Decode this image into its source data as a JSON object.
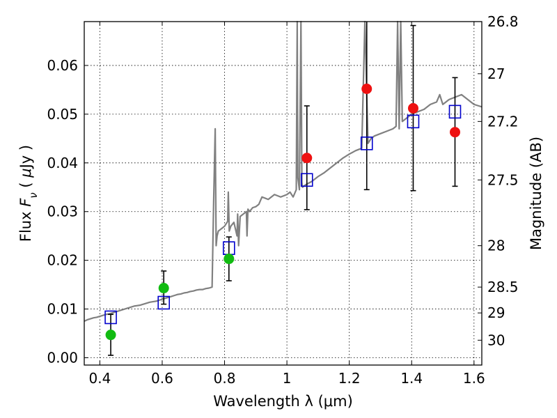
{
  "chart_data": {
    "type": "scatter",
    "xlabel": "Wavelength  λ (μm)",
    "ylabel": "Flux  F_ν  ( μJy )",
    "ylabel_right": "Magnitude (AB)",
    "xlim": [
      0.35,
      1.625
    ],
    "ylim": [
      -0.0015,
      0.069
    ],
    "x_ticks": [
      0.4,
      0.6,
      0.8,
      1.0,
      1.2,
      1.4,
      1.6
    ],
    "x_tick_labels": [
      "0.4",
      "0.6",
      "0.8",
      "1",
      "1.2",
      "1.4",
      "1.6"
    ],
    "y_ticks": [
      0.0,
      0.01,
      0.02,
      0.03,
      0.04,
      0.05,
      0.06
    ],
    "y_tick_labels": [
      "0.00",
      "0.01",
      "0.02",
      "0.03",
      "0.04",
      "0.05",
      "0.06"
    ],
    "right_ticks": [
      {
        "flux": 0.069,
        "label": "26.8"
      },
      {
        "flux": 0.0583,
        "label": "27"
      },
      {
        "flux": 0.0485,
        "label": "27.2"
      },
      {
        "flux": 0.0365,
        "label": "27.5"
      },
      {
        "flux": 0.023,
        "label": "28"
      },
      {
        "flux": 0.0145,
        "label": "28.5"
      },
      {
        "flux": 0.0092,
        "label": "29"
      },
      {
        "flux": 0.0036,
        "label": "30"
      }
    ],
    "grid": true,
    "colors": {
      "sed": "#808080",
      "model_box": "#0000cc",
      "detection": "#ee1111",
      "optical": "#11bb11",
      "errorbar": "#000000"
    },
    "sed_model": {
      "x": [
        0.35,
        0.36,
        0.37,
        0.38,
        0.39,
        0.4,
        0.41,
        0.42,
        0.43,
        0.44,
        0.45,
        0.46,
        0.47,
        0.48,
        0.49,
        0.5,
        0.51,
        0.52,
        0.53,
        0.54,
        0.55,
        0.56,
        0.57,
        0.58,
        0.59,
        0.6,
        0.61,
        0.62,
        0.63,
        0.64,
        0.65,
        0.66,
        0.67,
        0.68,
        0.69,
        0.7,
        0.71,
        0.72,
        0.73,
        0.74,
        0.75,
        0.76,
        0.765,
        0.77,
        0.773,
        0.776,
        0.78,
        0.79,
        0.8,
        0.81,
        0.812,
        0.815,
        0.82,
        0.83,
        0.84,
        0.842,
        0.845,
        0.85,
        0.86,
        0.87,
        0.872,
        0.875,
        0.88,
        0.89,
        0.9,
        0.91,
        0.92,
        0.94,
        0.96,
        0.98,
        1.0,
        1.01,
        1.02,
        1.03,
        1.033,
        1.035,
        1.04,
        1.045,
        1.048,
        1.05,
        1.06,
        1.08,
        1.1,
        1.12,
        1.14,
        1.16,
        1.18,
        1.2,
        1.22,
        1.24,
        1.25,
        1.26,
        1.27,
        1.28,
        1.3,
        1.32,
        1.34,
        1.35,
        1.355,
        1.36,
        1.365,
        1.37,
        1.38,
        1.4,
        1.42,
        1.44,
        1.46,
        1.48,
        1.49,
        1.495,
        1.5,
        1.51,
        1.52,
        1.54,
        1.56,
        1.58,
        1.6,
        1.625
      ],
      "y": [
        0.0075,
        0.0078,
        0.008,
        0.0082,
        0.0083,
        0.0085,
        0.0087,
        0.0089,
        0.009,
        0.0092,
        0.0094,
        0.0096,
        0.0098,
        0.01,
        0.0102,
        0.0104,
        0.0106,
        0.0107,
        0.0108,
        0.011,
        0.0112,
        0.0114,
        0.0115,
        0.0116,
        0.0118,
        0.012,
        0.0122,
        0.0124,
        0.0126,
        0.0128,
        0.013,
        0.0131,
        0.0133,
        0.0134,
        0.0136,
        0.0137,
        0.0139,
        0.014,
        0.014,
        0.0142,
        0.0143,
        0.0145,
        0.032,
        0.047,
        0.023,
        0.025,
        0.026,
        0.0265,
        0.027,
        0.028,
        0.034,
        0.026,
        0.027,
        0.0278,
        0.025,
        0.0295,
        0.023,
        0.029,
        0.0295,
        0.03,
        0.025,
        0.0305,
        0.03,
        0.0308,
        0.031,
        0.0315,
        0.033,
        0.0325,
        0.0335,
        0.033,
        0.0335,
        0.034,
        0.033,
        0.0345,
        0.069,
        0.037,
        0.0345,
        0.069,
        0.036,
        0.035,
        0.0355,
        0.0362,
        0.0372,
        0.038,
        0.039,
        0.04,
        0.041,
        0.0418,
        0.0425,
        0.043,
        0.069,
        0.044,
        0.045,
        0.0455,
        0.046,
        0.0465,
        0.047,
        0.0475,
        0.069,
        0.047,
        0.069,
        0.0485,
        0.049,
        0.05,
        0.0505,
        0.051,
        0.052,
        0.0525,
        0.054,
        0.053,
        0.052,
        0.0525,
        0.053,
        0.0535,
        0.054,
        0.053,
        0.052,
        0.0515
      ]
    },
    "model_fluxes": {
      "x": [
        0.435,
        0.605,
        0.814,
        1.064,
        1.256,
        1.405,
        1.539
      ],
      "y": [
        0.0083,
        0.0113,
        0.0225,
        0.0365,
        0.044,
        0.0485,
        0.0505
      ]
    },
    "detections": {
      "x": [
        1.064,
        1.256,
        1.405,
        1.539
      ],
      "y": [
        0.041,
        0.0552,
        0.0512,
        0.0463
      ],
      "err_low": [
        0.0106,
        0.0207,
        0.0169,
        0.0111
      ],
      "err_high": [
        0.0107,
        0.0143,
        0.017,
        0.0112
      ]
    },
    "optical_points": {
      "x": [
        0.435,
        0.605,
        0.814
      ],
      "y": [
        0.0047,
        0.0143,
        0.0203
      ],
      "err_low": [
        0.0042,
        0.0033,
        0.0045
      ],
      "err_high": [
        0.0042,
        0.0035,
        0.0045
      ]
    }
  }
}
